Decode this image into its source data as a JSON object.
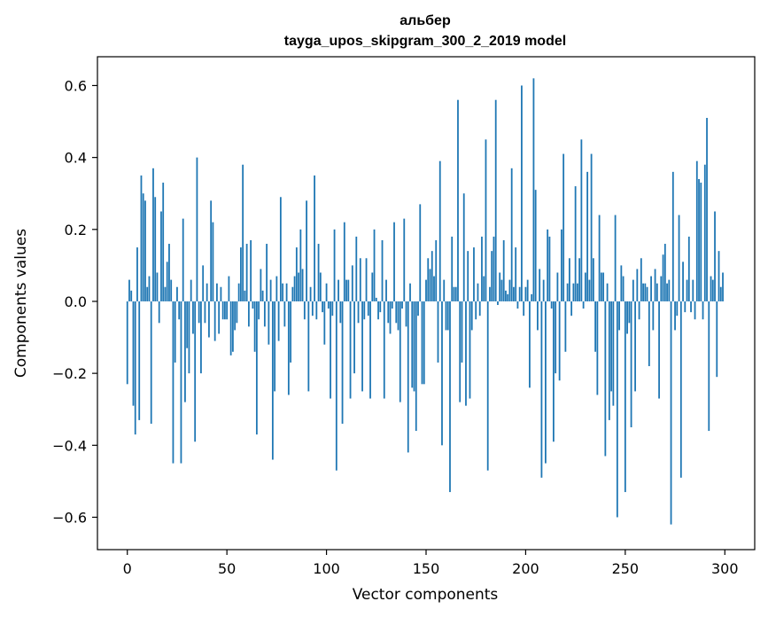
{
  "chart_data": {
    "type": "bar",
    "title": "альбер",
    "subtitle": "tayga_upos_skipgram_300_2_2019 model",
    "xlabel": "Vector components",
    "ylabel": "Components values",
    "xlim": [
      -15,
      315
    ],
    "ylim": [
      -0.69,
      0.68
    ],
    "xticks": [
      0,
      50,
      100,
      150,
      200,
      250,
      300
    ],
    "yticks": [
      -0.6,
      -0.4,
      -0.2,
      0.0,
      0.2,
      0.4,
      0.6
    ],
    "ytick_labels": [
      "−0.6",
      "−0.4",
      "−0.2",
      "0.0",
      "0.2",
      "0.4",
      "0.6"
    ],
    "grid": false,
    "bar_color": "#1f77b4",
    "x": [
      0,
      1,
      2,
      3,
      4,
      5,
      6,
      7,
      8,
      9,
      10,
      11,
      12,
      13,
      14,
      15,
      16,
      17,
      18,
      19,
      20,
      21,
      22,
      23,
      24,
      25,
      26,
      27,
      28,
      29,
      30,
      31,
      32,
      33,
      34,
      35,
      36,
      37,
      38,
      39,
      40,
      41,
      42,
      43,
      44,
      45,
      46,
      47,
      48,
      49,
      50,
      51,
      52,
      53,
      54,
      55,
      56,
      57,
      58,
      59,
      60,
      61,
      62,
      63,
      64,
      65,
      66,
      67,
      68,
      69,
      70,
      71,
      72,
      73,
      74,
      75,
      76,
      77,
      78,
      79,
      80,
      81,
      82,
      83,
      84,
      85,
      86,
      87,
      88,
      89,
      90,
      91,
      92,
      93,
      94,
      95,
      96,
      97,
      98,
      99,
      100,
      101,
      102,
      103,
      104,
      105,
      106,
      107,
      108,
      109,
      110,
      111,
      112,
      113,
      114,
      115,
      116,
      117,
      118,
      119,
      120,
      121,
      122,
      123,
      124,
      125,
      126,
      127,
      128,
      129,
      130,
      131,
      132,
      133,
      134,
      135,
      136,
      137,
      138,
      139,
      140,
      141,
      142,
      143,
      144,
      145,
      146,
      147,
      148,
      149,
      150,
      151,
      152,
      153,
      154,
      155,
      156,
      157,
      158,
      159,
      160,
      161,
      162,
      163,
      164,
      165,
      166,
      167,
      168,
      169,
      170,
      171,
      172,
      173,
      174,
      175,
      176,
      177,
      178,
      179,
      180,
      181,
      182,
      183,
      184,
      185,
      186,
      187,
      188,
      189,
      190,
      191,
      192,
      193,
      194,
      195,
      196,
      197,
      198,
      199,
      200,
      201,
      202,
      203,
      204,
      205,
      206,
      207,
      208,
      209,
      210,
      211,
      212,
      213,
      214,
      215,
      216,
      217,
      218,
      219,
      220,
      221,
      222,
      223,
      224,
      225,
      226,
      227,
      228,
      229,
      230,
      231,
      232,
      233,
      234,
      235,
      236,
      237,
      238,
      239,
      240,
      241,
      242,
      243,
      244,
      245,
      246,
      247,
      248,
      249,
      250,
      251,
      252,
      253,
      254,
      255,
      256,
      257,
      258,
      259,
      260,
      261,
      262,
      263,
      264,
      265,
      266,
      267,
      268,
      269,
      270,
      271,
      272,
      273,
      274,
      275,
      276,
      277,
      278,
      279,
      280,
      281,
      282,
      283,
      284,
      285,
      286,
      287,
      288,
      289,
      290,
      291,
      292,
      293,
      294,
      295,
      296,
      297,
      298,
      299
    ],
    "values": [
      -0.23,
      0.06,
      0.03,
      -0.29,
      -0.37,
      0.15,
      -0.33,
      0.35,
      0.3,
      0.28,
      0.04,
      0.07,
      -0.34,
      0.37,
      0.29,
      0.08,
      -0.06,
      0.25,
      0.33,
      0.04,
      0.11,
      0.16,
      0.06,
      -0.45,
      -0.17,
      0.04,
      -0.05,
      -0.45,
      0.23,
      -0.28,
      -0.13,
      -0.2,
      0.06,
      -0.09,
      -0.39,
      0.4,
      -0.06,
      -0.2,
      0.1,
      -0.06,
      0.05,
      -0.1,
      0.28,
      0.22,
      -0.11,
      0.05,
      -0.09,
      0.04,
      -0.05,
      -0.05,
      -0.05,
      0.07,
      -0.15,
      -0.14,
      -0.08,
      -0.06,
      0.05,
      0.15,
      0.38,
      0.03,
      0.16,
      -0.07,
      0.17,
      -0.02,
      -0.14,
      -0.37,
      -0.05,
      0.09,
      0.03,
      -0.07,
      0.16,
      -0.12,
      0.06,
      -0.44,
      -0.25,
      0.07,
      -0.11,
      0.29,
      0.05,
      -0.07,
      0.05,
      -0.26,
      -0.17,
      0.04,
      0.07,
      0.15,
      0.08,
      0.2,
      0.09,
      -0.05,
      0.28,
      -0.25,
      0.04,
      -0.04,
      0.35,
      -0.05,
      0.16,
      0.08,
      -0.03,
      -0.12,
      0.05,
      -0.02,
      -0.27,
      -0.04,
      0.2,
      -0.47,
      0.06,
      -0.06,
      -0.34,
      0.22,
      0.06,
      0.06,
      -0.27,
      0.1,
      -0.2,
      0.18,
      -0.06,
      0.12,
      -0.25,
      -0.05,
      0.12,
      -0.04,
      -0.27,
      0.08,
      0.2,
      0.01,
      -0.05,
      -0.03,
      0.17,
      -0.27,
      0.06,
      -0.06,
      -0.09,
      -0.02,
      0.22,
      -0.06,
      -0.08,
      -0.28,
      -0.02,
      0.23,
      -0.07,
      -0.42,
      0.05,
      -0.24,
      -0.25,
      -0.36,
      -0.04,
      0.27,
      -0.23,
      -0.23,
      0.06,
      0.12,
      0.09,
      0.14,
      0.07,
      0.17,
      -0.17,
      0.39,
      -0.4,
      0.06,
      -0.08,
      -0.08,
      -0.53,
      0.18,
      0.04,
      0.04,
      0.56,
      -0.28,
      -0.17,
      0.3,
      -0.29,
      0.14,
      -0.27,
      -0.08,
      0.15,
      -0.05,
      0.05,
      -0.04,
      0.18,
      0.07,
      0.45,
      -0.47,
      0.04,
      0.14,
      0.18,
      0.56,
      -0.01,
      0.08,
      0.06,
      0.17,
      0.03,
      0.02,
      0.06,
      0.37,
      0.04,
      0.15,
      -0.02,
      0.04,
      0.6,
      -0.04,
      0.04,
      0.06,
      -0.24,
      0.02,
      0.62,
      0.31,
      -0.08,
      0.09,
      -0.49,
      0.06,
      -0.45,
      0.2,
      0.18,
      -0.02,
      -0.39,
      -0.2,
      0.08,
      -0.22,
      0.2,
      0.41,
      -0.14,
      0.05,
      0.12,
      -0.04,
      0.05,
      0.32,
      0.05,
      0.12,
      0.45,
      -0.02,
      0.08,
      0.36,
      0.06,
      0.41,
      0.12,
      -0.14,
      -0.26,
      0.24,
      0.08,
      0.08,
      -0.43,
      0.05,
      -0.33,
      -0.25,
      -0.29,
      0.24,
      -0.6,
      -0.08,
      0.1,
      0.07,
      -0.53,
      -0.09,
      -0.06,
      -0.35,
      0.06,
      -0.25,
      0.09,
      -0.05,
      0.12,
      0.05,
      0.05,
      0.04,
      -0.18,
      0.07,
      -0.08,
      0.09,
      0.05,
      -0.27,
      0.07,
      0.13,
      0.16,
      0.05,
      0.06,
      -0.62,
      0.36,
      -0.08,
      -0.04,
      0.24,
      -0.49,
      0.11,
      -0.03,
      0.06,
      0.18,
      -0.03,
      0.06,
      -0.05,
      0.39,
      0.34,
      0.33,
      -0.05,
      0.38,
      0.51,
      -0.36,
      0.07,
      0.06,
      0.25,
      -0.21,
      0.14,
      0.04,
      0.08
    ]
  }
}
